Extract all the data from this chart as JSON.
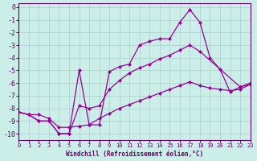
{
  "background_color": "#cceee8",
  "grid_color": "#aacccc",
  "line_color": "#990099",
  "xlabel": "Windchill (Refroidissement éolien,°C)",
  "xlim": [
    0,
    23
  ],
  "ylim": [
    -10.5,
    0.3
  ],
  "xticks": [
    0,
    1,
    2,
    3,
    4,
    5,
    6,
    7,
    8,
    9,
    10,
    11,
    12,
    13,
    14,
    15,
    16,
    17,
    18,
    19,
    20,
    21,
    22,
    23
  ],
  "yticks": [
    0,
    -1,
    -2,
    -3,
    -4,
    -5,
    -6,
    -7,
    -8,
    -9,
    -10
  ],
  "line1_x": [
    0,
    1,
    2,
    3,
    4,
    5,
    6,
    7,
    8,
    9,
    10,
    11,
    12,
    13,
    14,
    15,
    16,
    17,
    18,
    19,
    20,
    21,
    22,
    23
  ],
  "line1_y": [
    -8.3,
    -8.5,
    -9.0,
    -9.0,
    -10.0,
    -10.0,
    -5.0,
    -9.3,
    -9.3,
    -5.1,
    -4.7,
    -4.5,
    -3.0,
    -2.7,
    -2.5,
    -2.5,
    -1.2,
    -0.2,
    -1.2,
    -4.0,
    -4.9,
    -6.7,
    -6.3,
    -6.0
  ],
  "line2_x": [
    0,
    1,
    2,
    3,
    4,
    5,
    6,
    7,
    8,
    9,
    10,
    11,
    12,
    13,
    14,
    15,
    16,
    17,
    18,
    22,
    23
  ],
  "line2_y": [
    -8.3,
    -8.5,
    -9.0,
    -9.0,
    -10.0,
    -10.0,
    -7.8,
    -8.0,
    -7.8,
    -6.5,
    -5.8,
    -5.2,
    -4.8,
    -4.5,
    -4.1,
    -3.8,
    -3.4,
    -3.0,
    -3.5,
    -6.3,
    -6.1
  ],
  "line3_x": [
    0,
    1,
    2,
    3,
    4,
    5,
    6,
    7,
    8,
    9,
    10,
    11,
    12,
    13,
    14,
    15,
    16,
    17,
    18,
    19,
    20,
    21,
    22,
    23
  ],
  "line3_y": [
    -8.3,
    -8.5,
    -8.5,
    -8.8,
    -9.5,
    -9.5,
    -9.4,
    -9.3,
    -8.8,
    -8.4,
    -8.0,
    -7.7,
    -7.4,
    -7.1,
    -6.8,
    -6.5,
    -6.2,
    -5.9,
    -6.2,
    -6.4,
    -6.5,
    -6.6,
    -6.5,
    -6.1
  ]
}
